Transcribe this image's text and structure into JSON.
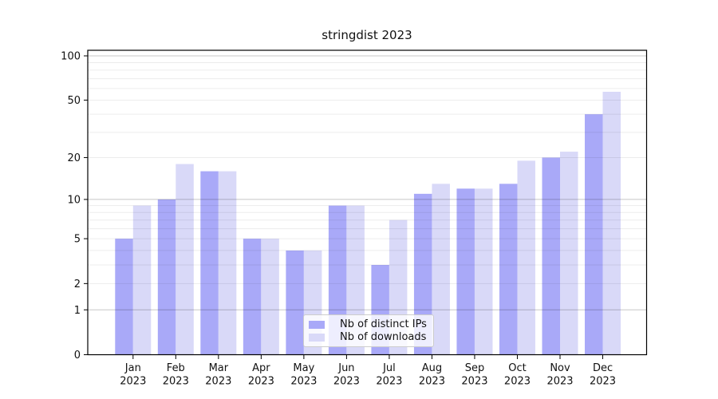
{
  "chart_data": {
    "type": "bar",
    "title": "stringdist 2023",
    "months": [
      "Jan",
      "Feb",
      "Mar",
      "Apr",
      "May",
      "Jun",
      "Jul",
      "Aug",
      "Sep",
      "Oct",
      "Nov",
      "Dec"
    ],
    "year": "2023",
    "series": [
      {
        "name": "Nb of distinct IPs",
        "color": "#a9a9f8",
        "values": [
          5,
          10,
          16,
          5,
          4,
          9,
          3,
          11,
          12,
          13,
          20,
          40
        ]
      },
      {
        "name": "Nb of downloads",
        "color": "#d9d9f8",
        "values": [
          9,
          18,
          16,
          5,
          4,
          9,
          7,
          13,
          12,
          19,
          22,
          57
        ]
      }
    ],
    "y_axis": {
      "scale": "log1p",
      "ticks": [
        0,
        1,
        2,
        5,
        10,
        20,
        50,
        100
      ],
      "major_gridlines": [
        1,
        10,
        100
      ],
      "minor_gridlines": [
        2,
        3,
        4,
        5,
        6,
        7,
        8,
        9,
        20,
        30,
        40,
        50,
        60,
        70,
        80,
        90
      ],
      "ylim": [
        0,
        110
      ]
    },
    "x_axis": {
      "tick_label_line2": "2023"
    },
    "legend": {
      "labels": [
        "Nb of distinct IPs",
        "Nb of downloads"
      ],
      "location": "lower center"
    },
    "grid": true
  },
  "colors": {
    "bar_distinct_ips": "#a9a9f8",
    "bar_downloads": "#d9d9f8",
    "grid_minor": "#ececec",
    "grid_major": "#c7c7c7",
    "axis_line": "#000000",
    "text": "#111111",
    "legend_border": "#cccccc",
    "background": "#ffffff"
  }
}
